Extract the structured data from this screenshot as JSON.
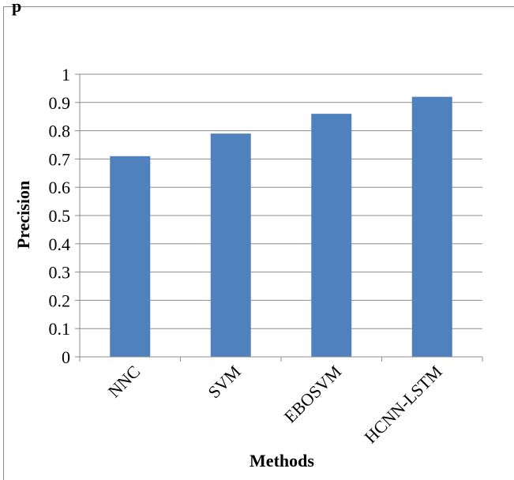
{
  "chart_data": {
    "type": "bar",
    "title": "",
    "top_clipped_text": "p",
    "xlabel": "Methods",
    "ylabel": "Precision",
    "categories": [
      "NNC",
      "SVM",
      "EBOSVM",
      "HCNN-LSTM"
    ],
    "values": [
      0.71,
      0.79,
      0.86,
      0.92
    ],
    "ylim": [
      0,
      1
    ],
    "yticks": [
      "0",
      "0.1",
      "0.2",
      "0.3",
      "0.4",
      "0.5",
      "0.6",
      "0.7",
      "0.8",
      "0.9",
      "1"
    ],
    "grid": true,
    "legend": "none",
    "bar_color": "#4F81BD"
  }
}
